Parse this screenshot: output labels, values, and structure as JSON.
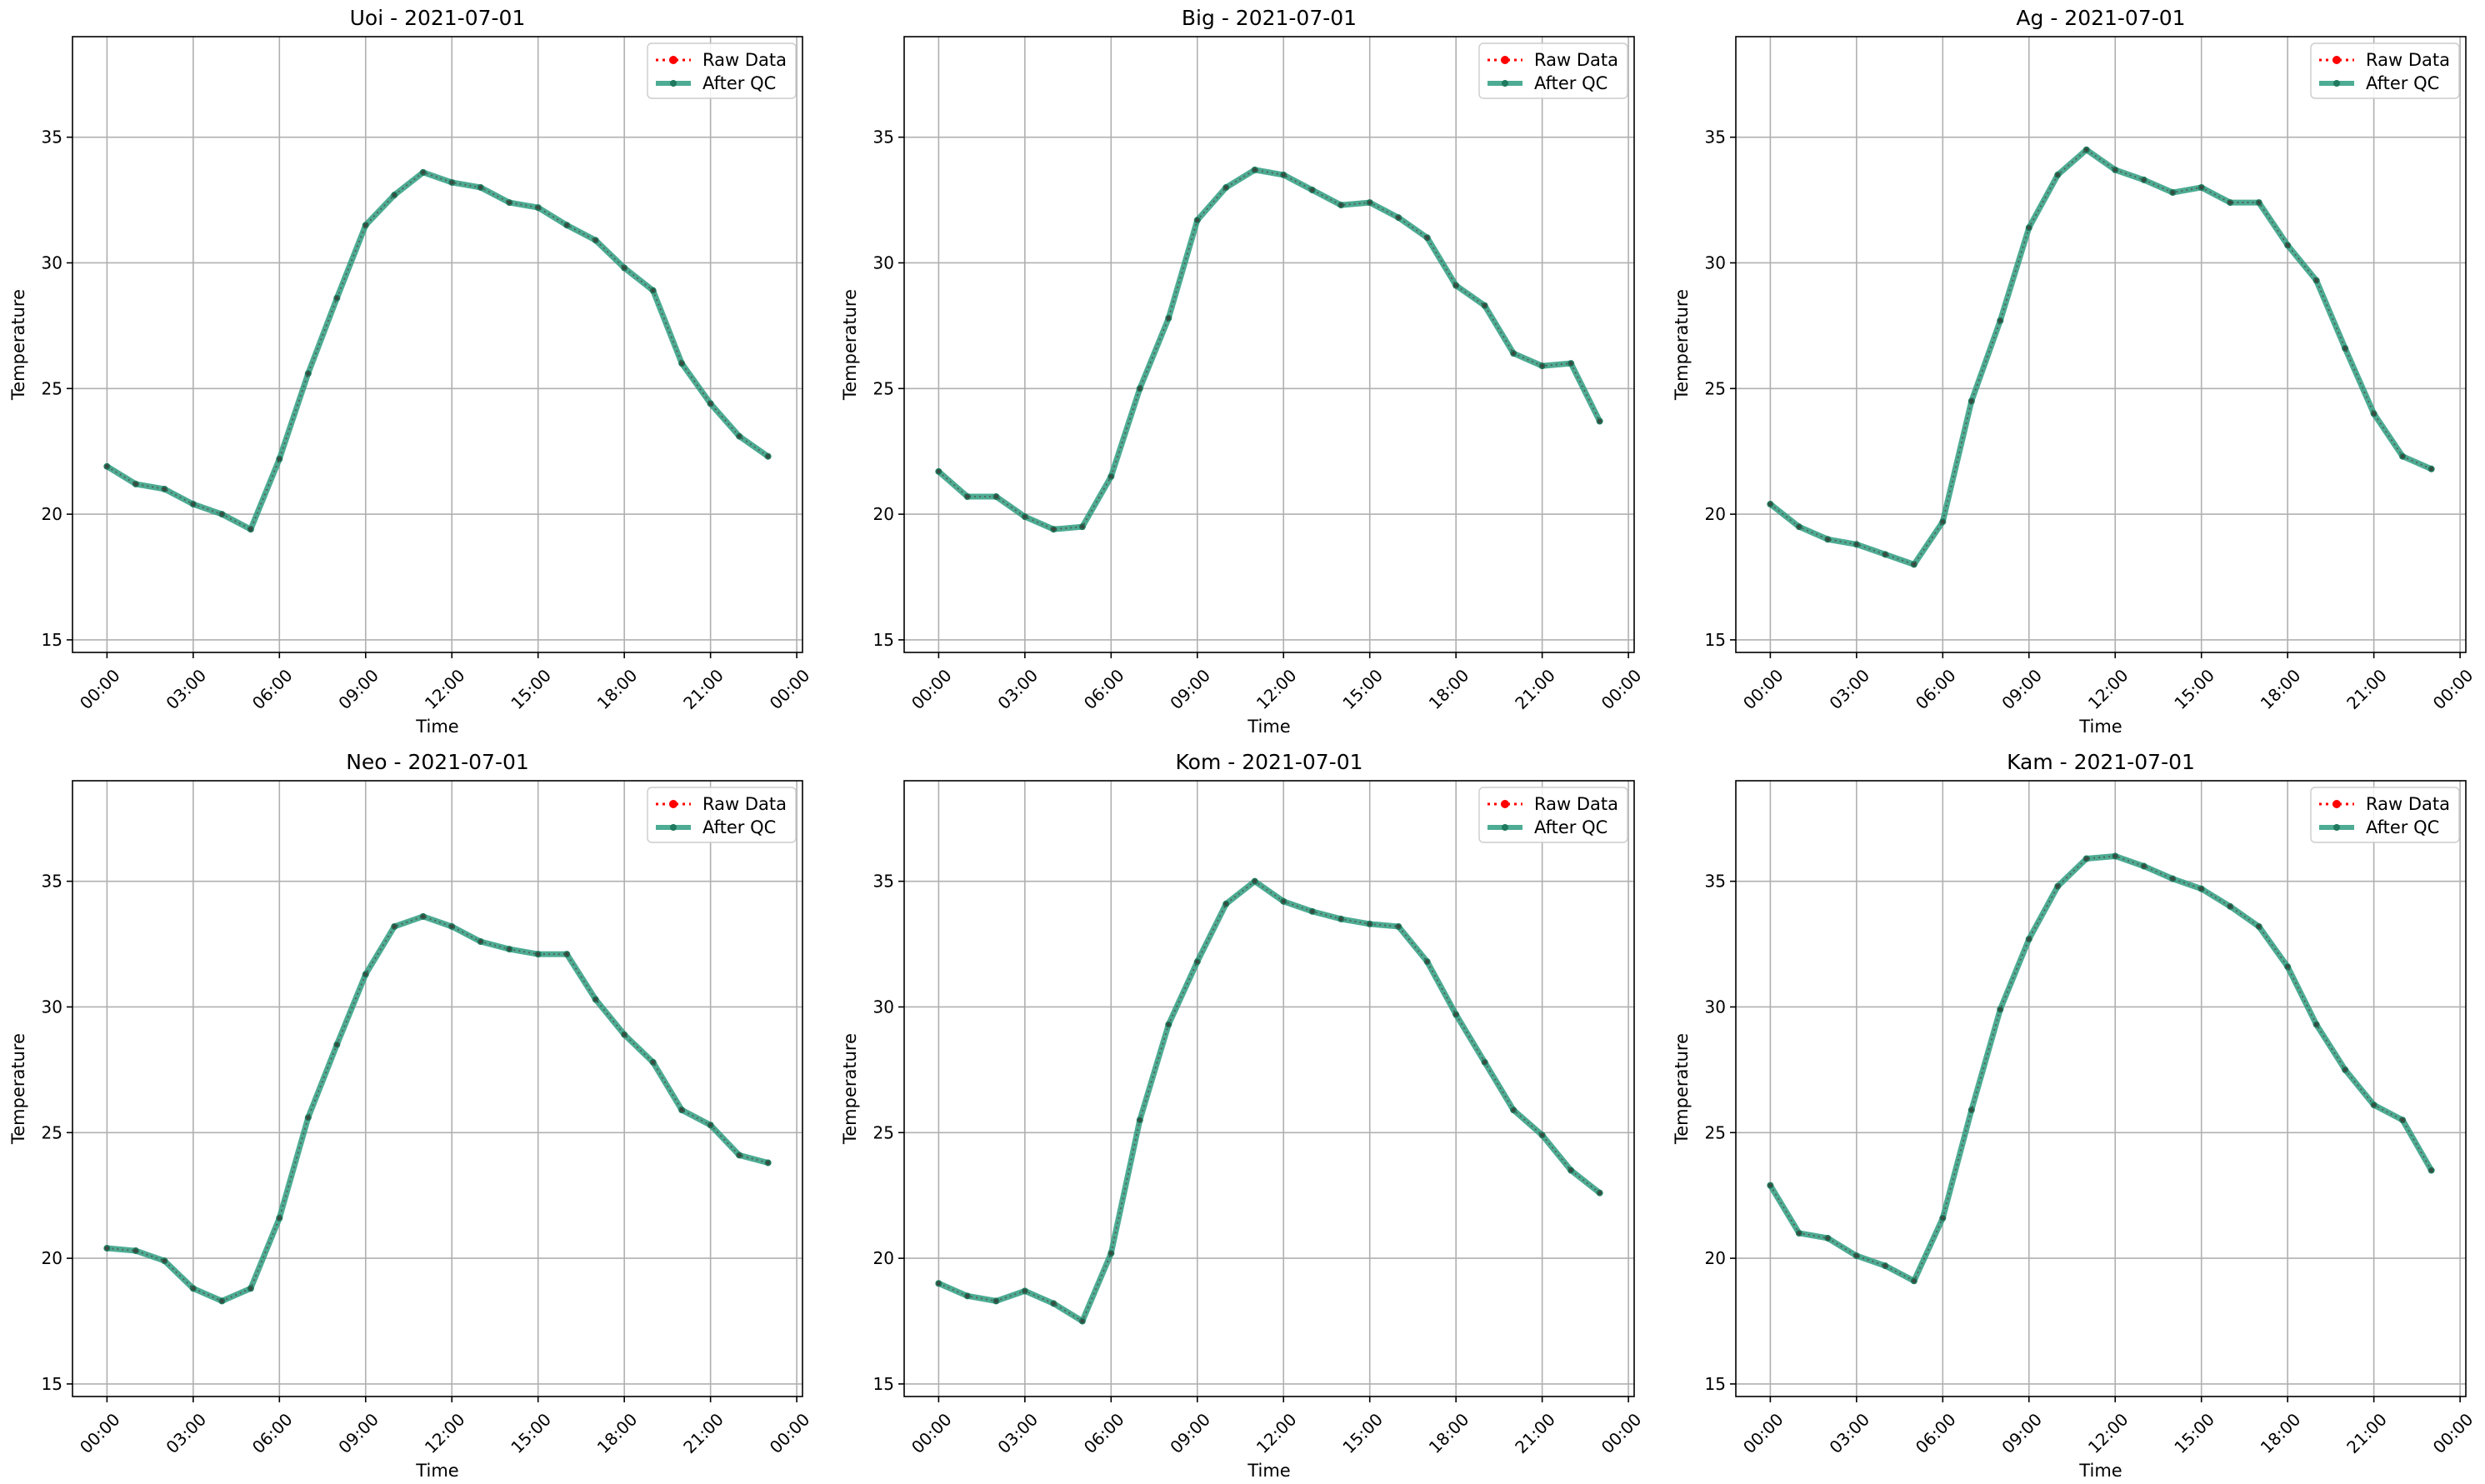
{
  "chart_data": [
    {
      "type": "line",
      "title": "Uoi - 2021-07-01",
      "xlabel": "Time",
      "ylabel": "Temperature",
      "ylim": [
        14.5,
        39
      ],
      "yticks": [
        15,
        20,
        25,
        30,
        35
      ],
      "xticks": [
        "00:00",
        "03:00",
        "06:00",
        "09:00",
        "12:00",
        "15:00",
        "18:00",
        "21:00",
        "00:00"
      ],
      "grid": true,
      "legend_position": "top-right",
      "x_hours": [
        0,
        1,
        2,
        3,
        4,
        5,
        6,
        7,
        8,
        9,
        10,
        11,
        12,
        13,
        14,
        15,
        16,
        17,
        18,
        19,
        20,
        21,
        22,
        23
      ],
      "series": [
        {
          "name": "Raw Data",
          "color": "#ff0000",
          "style": "dotted",
          "values": [
            21.9,
            21.2,
            21.0,
            20.4,
            20.0,
            19.4,
            22.2,
            25.6,
            28.6,
            31.5,
            32.7,
            33.6,
            33.2,
            33.0,
            32.4,
            32.2,
            31.5,
            30.9,
            29.8,
            28.9,
            26.0,
            24.4,
            23.1,
            22.3
          ]
        },
        {
          "name": "After QC",
          "color": "#2e9e80",
          "style": "solid",
          "values": [
            21.9,
            21.2,
            21.0,
            20.4,
            20.0,
            19.4,
            22.2,
            25.6,
            28.6,
            31.5,
            32.7,
            33.6,
            33.2,
            33.0,
            32.4,
            32.2,
            31.5,
            30.9,
            29.8,
            28.9,
            26.0,
            24.4,
            23.1,
            22.3
          ]
        }
      ]
    },
    {
      "type": "line",
      "title": "Big - 2021-07-01",
      "xlabel": "Time",
      "ylabel": "Temperature",
      "ylim": [
        14.5,
        39
      ],
      "yticks": [
        15,
        20,
        25,
        30,
        35
      ],
      "xticks": [
        "00:00",
        "03:00",
        "06:00",
        "09:00",
        "12:00",
        "15:00",
        "18:00",
        "21:00",
        "00:00"
      ],
      "grid": true,
      "legend_position": "top-right",
      "x_hours": [
        0,
        1,
        2,
        3,
        4,
        5,
        6,
        7,
        8,
        9,
        10,
        11,
        12,
        13,
        14,
        15,
        16,
        17,
        18,
        19,
        20,
        21,
        22,
        23
      ],
      "series": [
        {
          "name": "Raw Data",
          "color": "#ff0000",
          "style": "dotted",
          "values": [
            21.7,
            20.7,
            20.7,
            19.9,
            19.4,
            19.5,
            21.5,
            25.0,
            27.8,
            31.7,
            33.0,
            33.7,
            33.5,
            32.9,
            32.3,
            32.4,
            31.8,
            31.0,
            29.1,
            28.3,
            26.4,
            25.9,
            26.0,
            23.7
          ]
        },
        {
          "name": "After QC",
          "color": "#2e9e80",
          "style": "solid",
          "values": [
            21.7,
            20.7,
            20.7,
            19.9,
            19.4,
            19.5,
            21.5,
            25.0,
            27.8,
            31.7,
            33.0,
            33.7,
            33.5,
            32.9,
            32.3,
            32.4,
            31.8,
            31.0,
            29.1,
            28.3,
            26.4,
            25.9,
            26.0,
            23.7
          ]
        }
      ]
    },
    {
      "type": "line",
      "title": "Ag - 2021-07-01",
      "xlabel": "Time",
      "ylabel": "Temperature",
      "ylim": [
        14.5,
        39
      ],
      "yticks": [
        15,
        20,
        25,
        30,
        35
      ],
      "xticks": [
        "00:00",
        "03:00",
        "06:00",
        "09:00",
        "12:00",
        "15:00",
        "18:00",
        "21:00",
        "00:00"
      ],
      "grid": true,
      "legend_position": "top-right",
      "x_hours": [
        0,
        1,
        2,
        3,
        4,
        5,
        6,
        7,
        8,
        9,
        10,
        11,
        12,
        13,
        14,
        15,
        16,
        17,
        18,
        19,
        20,
        21,
        22,
        23
      ],
      "series": [
        {
          "name": "Raw Data",
          "color": "#ff0000",
          "style": "dotted",
          "values": [
            20.4,
            19.5,
            19.0,
            18.8,
            18.4,
            18.0,
            19.7,
            24.5,
            27.7,
            31.4,
            33.5,
            34.5,
            33.7,
            33.3,
            32.8,
            33.0,
            32.4,
            32.4,
            30.7,
            29.3,
            26.6,
            24.0,
            22.3,
            21.8
          ]
        },
        {
          "name": "After QC",
          "color": "#2e9e80",
          "style": "solid",
          "values": [
            20.4,
            19.5,
            19.0,
            18.8,
            18.4,
            18.0,
            19.7,
            24.5,
            27.7,
            31.4,
            33.5,
            34.5,
            33.7,
            33.3,
            32.8,
            33.0,
            32.4,
            32.4,
            30.7,
            29.3,
            26.6,
            24.0,
            22.3,
            21.8
          ]
        }
      ]
    },
    {
      "type": "line",
      "title": "Neo - 2021-07-01",
      "xlabel": "Time",
      "ylabel": "Temperature",
      "ylim": [
        14.5,
        39
      ],
      "yticks": [
        15,
        20,
        25,
        30,
        35
      ],
      "xticks": [
        "00:00",
        "03:00",
        "06:00",
        "09:00",
        "12:00",
        "15:00",
        "18:00",
        "21:00",
        "00:00"
      ],
      "grid": true,
      "legend_position": "top-right",
      "x_hours": [
        0,
        1,
        2,
        3,
        4,
        5,
        6,
        7,
        8,
        9,
        10,
        11,
        12,
        13,
        14,
        15,
        16,
        17,
        18,
        19,
        20,
        21,
        22,
        23
      ],
      "series": [
        {
          "name": "Raw Data",
          "color": "#ff0000",
          "style": "dotted",
          "values": [
            20.4,
            20.3,
            19.9,
            18.8,
            18.3,
            18.8,
            21.6,
            25.6,
            28.5,
            31.3,
            33.2,
            33.6,
            33.2,
            32.6,
            32.3,
            32.1,
            32.1,
            30.3,
            28.9,
            27.8,
            25.9,
            25.3,
            24.1,
            23.8
          ]
        },
        {
          "name": "After QC",
          "color": "#2e9e80",
          "style": "solid",
          "values": [
            20.4,
            20.3,
            19.9,
            18.8,
            18.3,
            18.8,
            21.6,
            25.6,
            28.5,
            31.3,
            33.2,
            33.6,
            33.2,
            32.6,
            32.3,
            32.1,
            32.1,
            30.3,
            28.9,
            27.8,
            25.9,
            25.3,
            24.1,
            23.8
          ]
        }
      ]
    },
    {
      "type": "line",
      "title": "Kom - 2021-07-01",
      "xlabel": "Time",
      "ylabel": "Temperature",
      "ylim": [
        14.5,
        39
      ],
      "yticks": [
        15,
        20,
        25,
        30,
        35
      ],
      "xticks": [
        "00:00",
        "03:00",
        "06:00",
        "09:00",
        "12:00",
        "15:00",
        "18:00",
        "21:00",
        "00:00"
      ],
      "grid": true,
      "legend_position": "top-right",
      "x_hours": [
        0,
        1,
        2,
        3,
        4,
        5,
        6,
        7,
        8,
        9,
        10,
        11,
        12,
        13,
        14,
        15,
        16,
        17,
        18,
        19,
        20,
        21,
        22,
        23
      ],
      "series": [
        {
          "name": "Raw Data",
          "color": "#ff0000",
          "style": "dotted",
          "values": [
            19.0,
            18.5,
            18.3,
            18.7,
            18.2,
            17.5,
            20.2,
            25.5,
            29.3,
            31.8,
            34.1,
            35.0,
            34.2,
            33.8,
            33.5,
            33.3,
            33.2,
            31.8,
            29.7,
            27.8,
            25.9,
            24.9,
            23.5,
            22.6
          ]
        },
        {
          "name": "After QC",
          "color": "#2e9e80",
          "style": "solid",
          "values": [
            19.0,
            18.5,
            18.3,
            18.7,
            18.2,
            17.5,
            20.2,
            25.5,
            29.3,
            31.8,
            34.1,
            35.0,
            34.2,
            33.8,
            33.5,
            33.3,
            33.2,
            31.8,
            29.7,
            27.8,
            25.9,
            24.9,
            23.5,
            22.6
          ]
        }
      ]
    },
    {
      "type": "line",
      "title": "Kam - 2021-07-01",
      "xlabel": "Time",
      "ylabel": "Temperature",
      "ylim": [
        14.5,
        39
      ],
      "yticks": [
        15,
        20,
        25,
        30,
        35
      ],
      "xticks": [
        "00:00",
        "03:00",
        "06:00",
        "09:00",
        "12:00",
        "15:00",
        "18:00",
        "21:00",
        "00:00"
      ],
      "grid": true,
      "legend_position": "top-right",
      "x_hours": [
        0,
        1,
        2,
        3,
        4,
        5,
        6,
        7,
        8,
        9,
        10,
        11,
        12,
        13,
        14,
        15,
        16,
        17,
        18,
        19,
        20,
        21,
        22,
        23
      ],
      "series": [
        {
          "name": "Raw Data",
          "color": "#ff0000",
          "style": "dotted",
          "values": [
            22.9,
            21.0,
            20.8,
            20.1,
            19.7,
            19.1,
            21.6,
            25.9,
            29.9,
            32.7,
            34.8,
            35.9,
            36.0,
            35.6,
            35.1,
            34.7,
            34.0,
            33.2,
            31.6,
            29.3,
            27.5,
            26.1,
            25.5,
            23.5
          ]
        },
        {
          "name": "After QC",
          "color": "#2e9e80",
          "style": "solid",
          "values": [
            22.9,
            21.0,
            20.8,
            20.1,
            19.7,
            19.1,
            21.6,
            25.9,
            29.9,
            32.7,
            34.8,
            35.9,
            36.0,
            35.6,
            35.1,
            34.7,
            34.0,
            33.2,
            31.6,
            29.3,
            27.5,
            26.1,
            25.5,
            23.5
          ]
        }
      ]
    }
  ]
}
